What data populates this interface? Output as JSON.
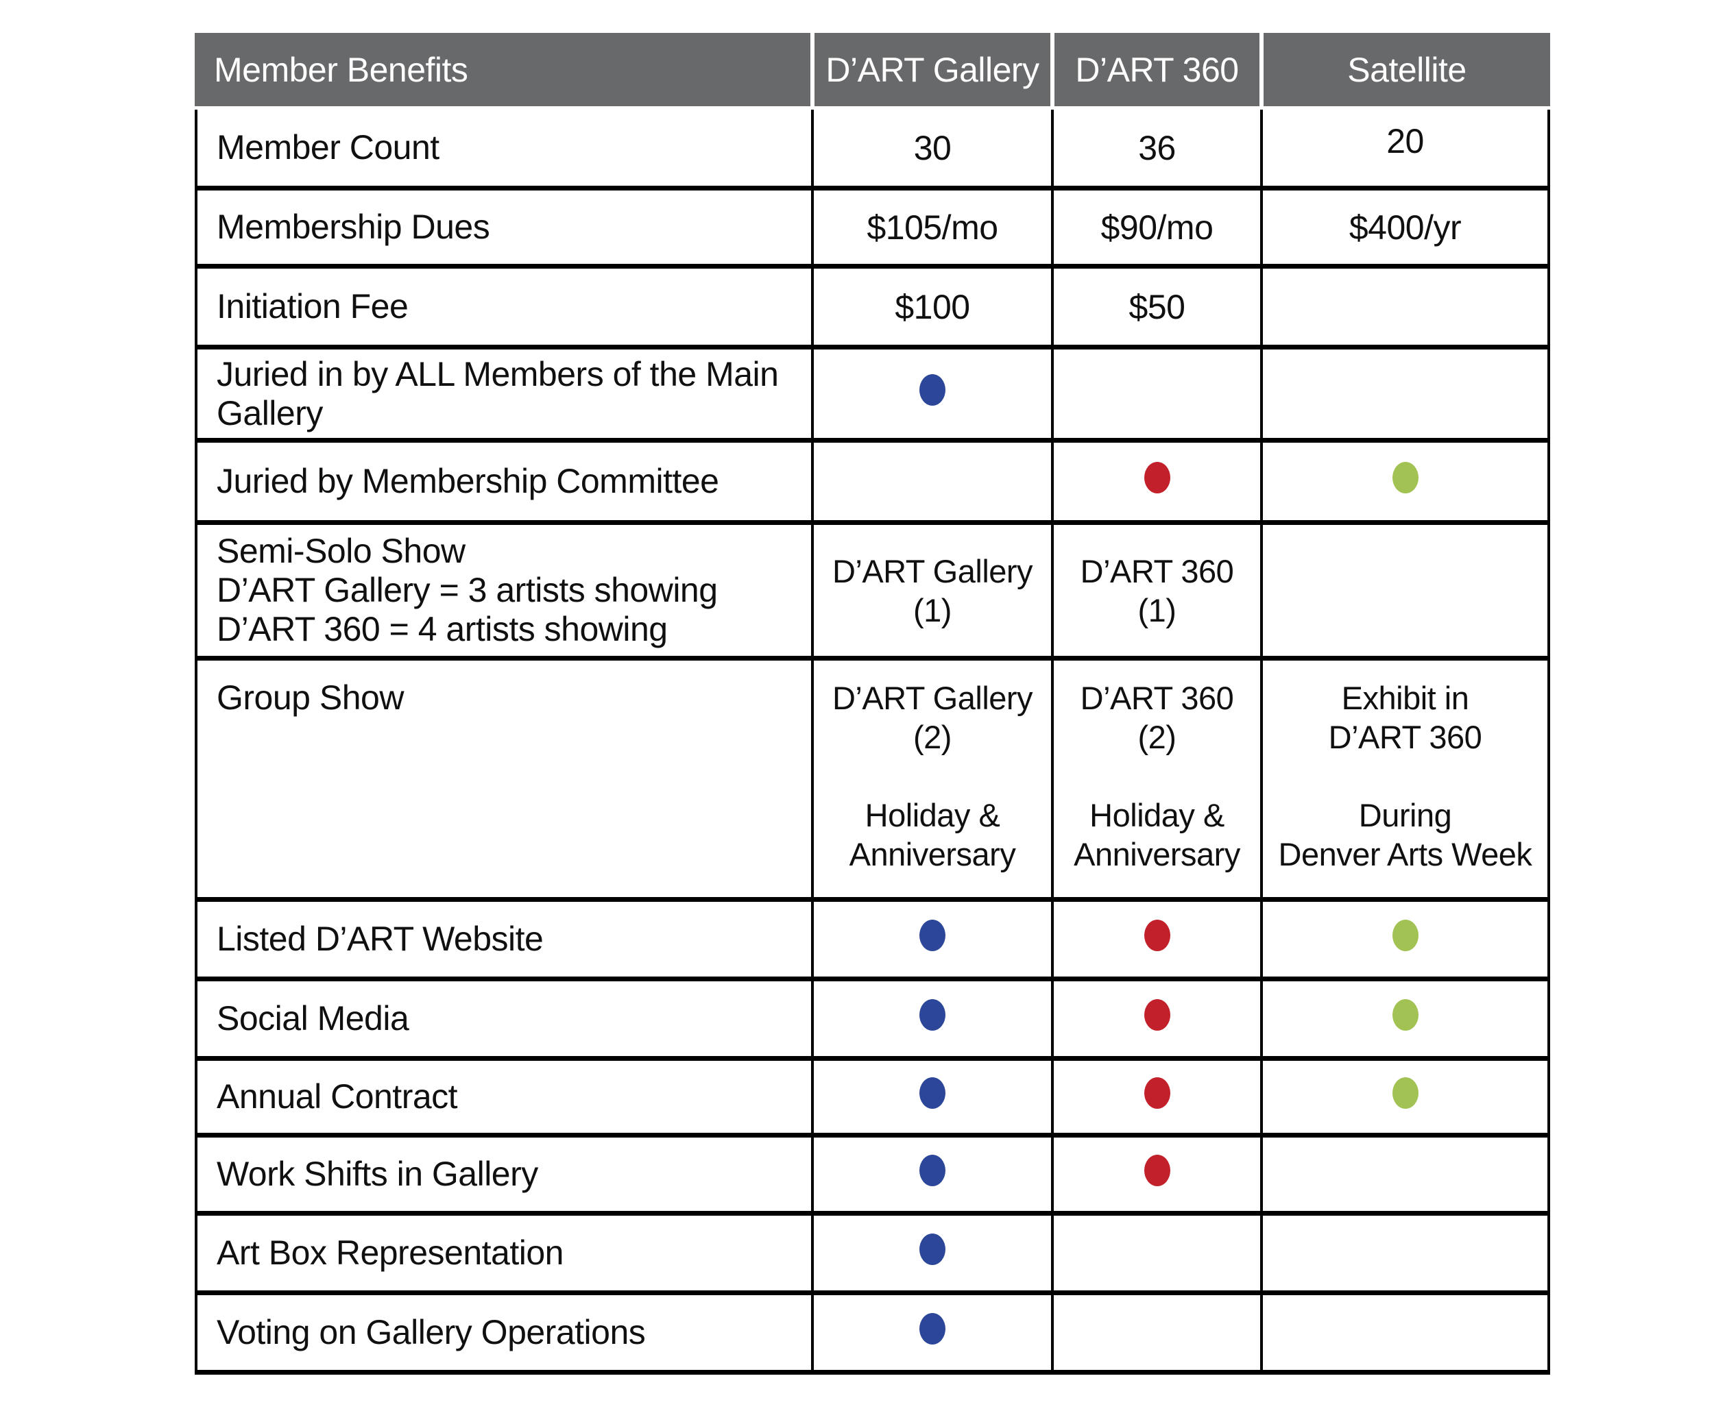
{
  "colors": {
    "header_bg": "#68696b",
    "header_text": "#ffffff",
    "border": "#000000",
    "dot_blue": "#2c4799",
    "dot_red": "#c2202a",
    "dot_green": "#a2c353"
  },
  "table": {
    "header": {
      "benefit_label": "Member Benefits",
      "columns": [
        "D’ART Gallery",
        "D’ART 360",
        "Satellite"
      ]
    },
    "rows": [
      {
        "benefit": "Member Count",
        "cells": [
          {
            "text": "30"
          },
          {
            "text": "36"
          },
          {
            "text": "20"
          }
        ]
      },
      {
        "benefit": "Membership Dues",
        "cells": [
          {
            "text": "$105/mo"
          },
          {
            "text": "$90/mo"
          },
          {
            "text": "$400/yr"
          }
        ]
      },
      {
        "benefit": "Initiation Fee",
        "cells": [
          {
            "text": "$100"
          },
          {
            "text": "$50"
          },
          {}
        ]
      },
      {
        "benefit_lines": [
          "Juried in by ALL Members of the Main",
          "Gallery"
        ],
        "cells": [
          {
            "dot": "blue"
          },
          {},
          {}
        ]
      },
      {
        "benefit": "Juried by Membership Committee",
        "cells": [
          {},
          {
            "dot": "red"
          },
          {
            "dot": "green"
          }
        ]
      },
      {
        "benefit_lines": [
          "Semi-Solo Show",
          "D’ART Gallery = 3 artists showing",
          "D’ART 360 = 4 artists showing"
        ],
        "cells": [
          {
            "lines": [
              "D’ART Gallery",
              "(1)"
            ]
          },
          {
            "lines": [
              "D’ART 360",
              "(1)"
            ]
          },
          {}
        ]
      },
      {
        "benefit": "Group Show",
        "cells": [
          {
            "lines": [
              "D’ART Gallery",
              "(2)",
              "",
              "Holiday &",
              "Anniversary"
            ]
          },
          {
            "lines": [
              "D’ART 360",
              "(2)",
              "",
              "Holiday &",
              "Anniversary"
            ]
          },
          {
            "lines": [
              "Exhibit in",
              "D’ART 360",
              "",
              "During",
              "Denver Arts Week"
            ]
          }
        ]
      },
      {
        "benefit": "Listed D’ART Website",
        "cells": [
          {
            "dot": "blue"
          },
          {
            "dot": "red"
          },
          {
            "dot": "green"
          }
        ]
      },
      {
        "benefit": "Social Media",
        "cells": [
          {
            "dot": "blue"
          },
          {
            "dot": "red"
          },
          {
            "dot": "green"
          }
        ]
      },
      {
        "benefit": "Annual Contract",
        "cells": [
          {
            "dot": "blue"
          },
          {
            "dot": "red"
          },
          {
            "dot": "green"
          }
        ]
      },
      {
        "benefit": "Work Shifts in Gallery",
        "cells": [
          {
            "dot": "blue"
          },
          {
            "dot": "red"
          },
          {}
        ]
      },
      {
        "benefit": "Art Box Representation",
        "cells": [
          {
            "dot": "blue"
          },
          {},
          {}
        ]
      },
      {
        "benefit": "Voting on Gallery Operations",
        "cells": [
          {
            "dot": "blue"
          },
          {},
          {}
        ]
      }
    ]
  }
}
